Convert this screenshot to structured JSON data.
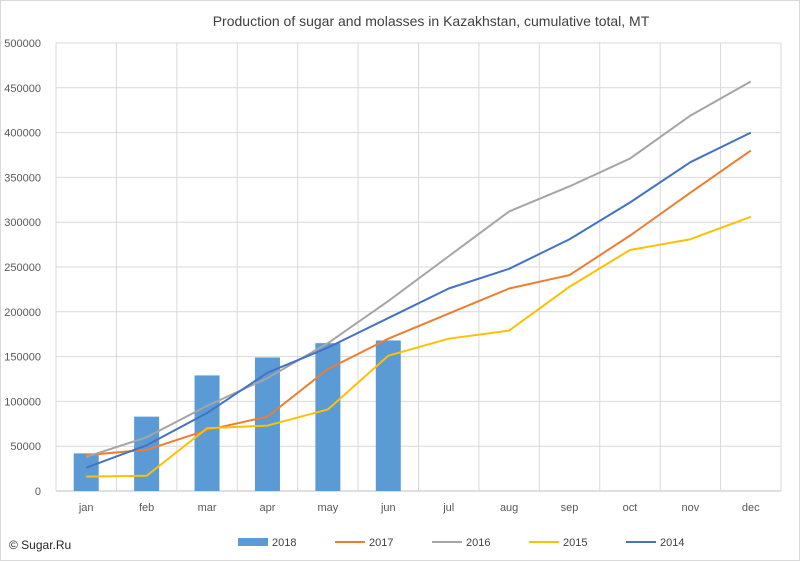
{
  "chart_data": {
    "type": "bar",
    "title": "Production of sugar and molasses in Kazakhstan, cumulative total, MT",
    "categories": [
      "jan",
      "feb",
      "mar",
      "apr",
      "may",
      "jun",
      "jul",
      "aug",
      "sep",
      "oct",
      "nov",
      "dec"
    ],
    "ylim": [
      0,
      500000
    ],
    "yticks": [
      "0",
      "50000",
      "100000",
      "150000",
      "200000",
      "250000",
      "300000",
      "350000",
      "400000",
      "450000",
      "500000"
    ],
    "grid": true,
    "legend_position": "bottom",
    "series": [
      {
        "name": "2018",
        "type": "bar",
        "color": "#5b9bd5",
        "values": [
          42000,
          83000,
          129000,
          149000,
          165000,
          168000,
          null,
          null,
          null,
          null,
          null,
          null
        ]
      },
      {
        "name": "2017",
        "type": "line",
        "color": "#ed7d31",
        "values": [
          40000,
          46000,
          68000,
          83000,
          136000,
          170000,
          198000,
          226000,
          241000,
          285000,
          333000,
          380000
        ]
      },
      {
        "name": "2016",
        "type": "line",
        "color": "#a5a5a5",
        "values": [
          38000,
          60000,
          95000,
          126000,
          165000,
          212000,
          262000,
          312000,
          340000,
          371000,
          419000,
          457000
        ]
      },
      {
        "name": "2015",
        "type": "line",
        "color": "#ffc000",
        "values": [
          16000,
          17000,
          70000,
          73000,
          91000,
          151000,
          170000,
          179000,
          228000,
          269000,
          281000,
          306000
        ]
      },
      {
        "name": "2014",
        "type": "line",
        "color": "#4472c4",
        "values": [
          26000,
          51000,
          87000,
          132000,
          160000,
          193000,
          226000,
          248000,
          281000,
          322000,
          367000,
          400000
        ]
      }
    ]
  },
  "watermark": "© Sugar.Ru"
}
